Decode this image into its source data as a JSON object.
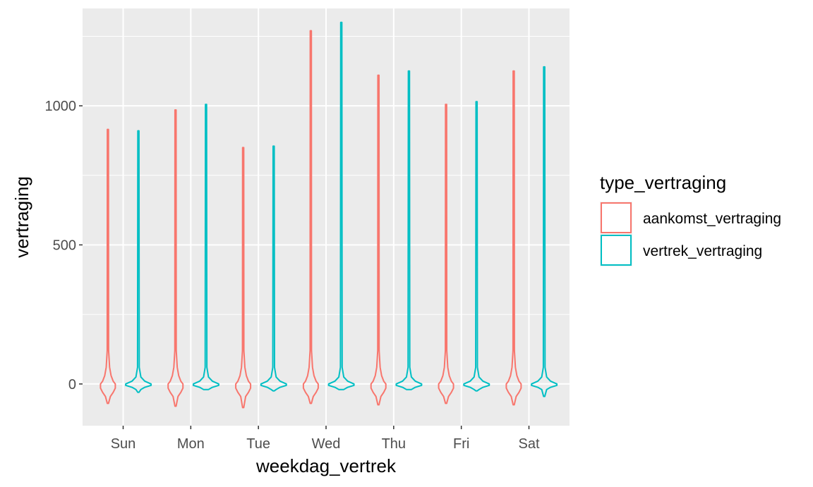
{
  "chart_data": {
    "type": "violin",
    "xlabel": "weekdag_vertrek",
    "ylabel": "vertraging",
    "categories": [
      "Sun",
      "Mon",
      "Tue",
      "Wed",
      "Thu",
      "Fri",
      "Sat"
    ],
    "ylim": [
      -150,
      1350
    ],
    "yticks": [
      0,
      500,
      1000
    ],
    "grid": true,
    "legend": {
      "title": "type_vertraging",
      "placement": "right"
    },
    "series": [
      {
        "name": "aankomst_vertraging",
        "color": "#F8766D",
        "min": [
          -70,
          -80,
          -85,
          -70,
          -75,
          -70,
          -75
        ],
        "max": [
          915,
          985,
          850,
          1270,
          1110,
          1005,
          1125
        ]
      },
      {
        "name": "vertrek_vertraging",
        "color": "#00BFC4",
        "min": [
          -30,
          -20,
          -25,
          -20,
          -20,
          -25,
          -45
        ],
        "max": [
          910,
          1005,
          855,
          1300,
          1125,
          1015,
          1140
        ]
      }
    ]
  }
}
